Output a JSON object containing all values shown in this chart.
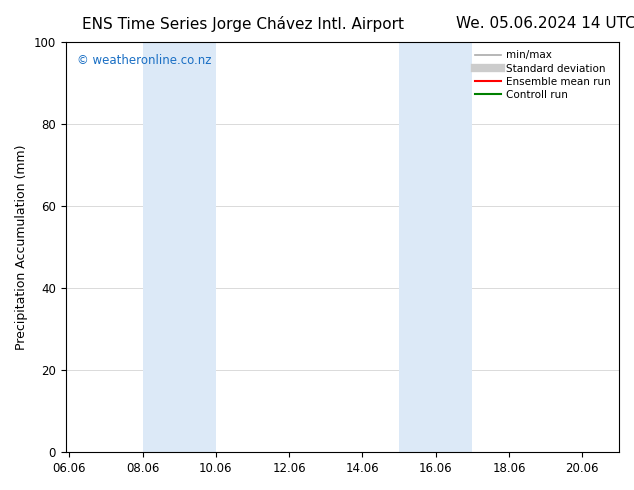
{
  "title_left": "ENS Time Series Jorge Chávez Intl. Airport",
  "title_right": "We. 05.06.2024 14 UTC",
  "ylabel": "Precipitation Accumulation (mm)",
  "watermark": "© weatheronline.co.nz",
  "watermark_color": "#1a6fc4",
  "xlim_start": 5.9,
  "xlim_end": 21.0,
  "ylim": [
    0,
    100
  ],
  "yticks": [
    0,
    20,
    40,
    60,
    80,
    100
  ],
  "xtick_labels": [
    "06.06",
    "08.06",
    "10.06",
    "12.06",
    "14.06",
    "16.06",
    "18.06",
    "20.06"
  ],
  "xtick_positions": [
    6.0,
    8.0,
    10.0,
    12.0,
    14.0,
    16.0,
    18.0,
    20.0
  ],
  "shaded_regions": [
    {
      "x_start": 8.0,
      "x_end": 10.0,
      "color": "#dce9f7",
      "alpha": 1.0
    },
    {
      "x_start": 15.0,
      "x_end": 16.0,
      "color": "#dce9f7",
      "alpha": 1.0
    },
    {
      "x_start": 16.0,
      "x_end": 17.0,
      "color": "#dce9f7",
      "alpha": 1.0
    }
  ],
  "legend_entries": [
    {
      "label": "min/max",
      "color": "#aaaaaa",
      "linewidth": 1.2,
      "linestyle": "-"
    },
    {
      "label": "Standard deviation",
      "color": "#cccccc",
      "linewidth": 6.0,
      "linestyle": "-"
    },
    {
      "label": "Ensemble mean run",
      "color": "red",
      "linewidth": 1.5,
      "linestyle": "-"
    },
    {
      "label": "Controll run",
      "color": "green",
      "linewidth": 1.5,
      "linestyle": "-"
    }
  ],
  "bg_color": "#ffffff",
  "grid_color": "#cccccc",
  "title_fontsize": 11,
  "axis_label_fontsize": 9,
  "tick_fontsize": 8.5,
  "legend_fontsize": 7.5
}
